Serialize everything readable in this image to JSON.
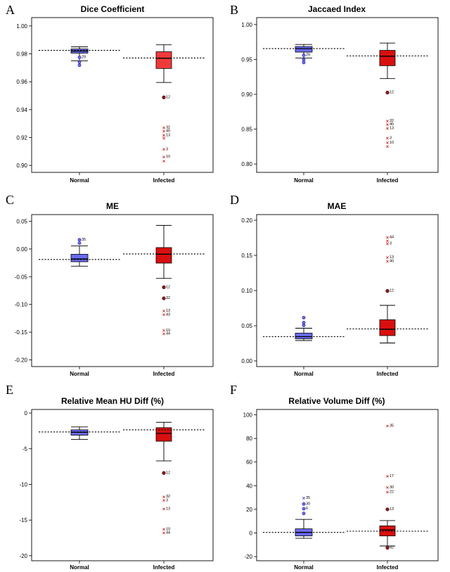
{
  "chart_data": [
    {
      "type": "box",
      "letter": "A",
      "title": "Dice Coefficient",
      "categories": [
        "Normal",
        "Infected"
      ],
      "ylim": [
        0.895,
        1.006
      ],
      "yticks": [
        0.9,
        0.92,
        0.94,
        0.96,
        0.98,
        1.0
      ],
      "decimals": 2,
      "boxes": [
        {
          "color": "#6b6bf2",
          "whisker_low": 0.975,
          "q1": 0.9805,
          "median": 0.982,
          "q3": 0.9835,
          "whisker_high": 0.985,
          "mean": 0.9825,
          "outliers": [
            {
              "v": 0.974,
              "label": "",
              "kind": "circle"
            },
            {
              "v": 0.9718,
              "label": "",
              "kind": "circle"
            },
            {
              "v": 0.9775,
              "label": "29",
              "kind": "circle"
            }
          ]
        },
        {
          "color": "#f03a3a",
          "whisker_low": 0.9595,
          "q1": 0.9695,
          "median": 0.9768,
          "q3": 0.9815,
          "whisker_high": 0.9865,
          "mean": 0.977,
          "outliers": [
            {
              "v": 0.9488,
              "label": "12",
              "kind": "dot"
            },
            {
              "v": 0.927,
              "label": "32",
              "kind": "star"
            },
            {
              "v": 0.9245,
              "label": "40",
              "kind": "star"
            },
            {
              "v": 0.9215,
              "label": "13",
              "kind": "star"
            },
            {
              "v": 0.9195,
              "label": "",
              "kind": "star"
            },
            {
              "v": 0.9115,
              "label": "3",
              "kind": "star"
            },
            {
              "v": 0.906,
              "label": "10",
              "kind": "star"
            },
            {
              "v": 0.903,
              "label": "",
              "kind": "star"
            }
          ]
        }
      ]
    },
    {
      "type": "box",
      "letter": "B",
      "title": "Jaccaed Index",
      "categories": [
        "Normal",
        "Infected"
      ],
      "ylim": [
        0.788,
        1.01
      ],
      "yticks": [
        0.8,
        0.85,
        0.9,
        0.95,
        1.0
      ],
      "decimals": 2,
      "boxes": [
        {
          "color": "#6b6bf2",
          "whisker_low": 0.952,
          "q1": 0.9605,
          "median": 0.9655,
          "q3": 0.9685,
          "whisker_high": 0.9715,
          "mean": 0.9655,
          "outliers": [
            {
              "v": 0.9495,
              "label": "",
              "kind": "circle"
            },
            {
              "v": 0.9455,
              "label": "",
              "kind": "circle"
            },
            {
              "v": 0.956,
              "label": "29",
              "kind": "circle"
            }
          ]
        },
        {
          "color": "#d90f0f",
          "whisker_low": 0.9225,
          "q1": 0.941,
          "median": 0.9545,
          "q3": 0.963,
          "whisker_high": 0.9735,
          "mean": 0.955,
          "outliers": [
            {
              "v": 0.9025,
              "label": "12",
              "kind": "dot"
            },
            {
              "v": 0.8615,
              "label": "32",
              "kind": "star"
            },
            {
              "v": 0.8565,
              "label": "40",
              "kind": "star"
            },
            {
              "v": 0.851,
              "label": "13",
              "kind": "star"
            },
            {
              "v": 0.837,
              "label": "3",
              "kind": "star"
            },
            {
              "v": 0.8305,
              "label": "10",
              "kind": "star"
            },
            {
              "v": 0.825,
              "label": "",
              "kind": "star"
            }
          ]
        }
      ]
    },
    {
      "type": "box",
      "letter": "C",
      "title": "ME",
      "categories": [
        "Normal",
        "Infected"
      ],
      "ylim": [
        -0.212,
        0.062
      ],
      "yticks": [
        0.05,
        0.0,
        -0.05,
        -0.1,
        -0.15,
        -0.2
      ],
      "decimals": 2,
      "boxes": [
        {
          "color": "#6b6bf2",
          "whisker_low": -0.031,
          "q1": -0.023,
          "median": -0.018,
          "q3": -0.0095,
          "whisker_high": 0.0055,
          "mean": -0.019,
          "outliers": [
            {
              "v": 0.0165,
              "label": "35",
              "kind": "circle"
            },
            {
              "v": 0.0105,
              "label": "",
              "kind": "circle"
            }
          ]
        },
        {
          "color": "#d90f0f",
          "whisker_low": -0.053,
          "q1": -0.0255,
          "median": -0.0095,
          "q3": 0.0025,
          "whisker_high": 0.0425,
          "mean": -0.009,
          "outliers": [
            {
              "v": -0.069,
              "label": "12",
              "kind": "dot"
            },
            {
              "v": -0.089,
              "label": "32",
              "kind": "dot"
            },
            {
              "v": -0.112,
              "label": "13",
              "kind": "star"
            },
            {
              "v": -0.1185,
              "label": "43",
              "kind": "star"
            },
            {
              "v": -0.147,
              "label": "10",
              "kind": "star"
            },
            {
              "v": -0.153,
              "label": "44",
              "kind": "star"
            }
          ]
        }
      ]
    },
    {
      "type": "box",
      "letter": "D",
      "title": "MAE",
      "categories": [
        "Normal",
        "Infected"
      ],
      "ylim": [
        -0.008,
        0.208
      ],
      "yticks": [
        0.0,
        0.05,
        0.1,
        0.15,
        0.2
      ],
      "decimals": 2,
      "boxes": [
        {
          "color": "#6b6bf2",
          "whisker_low": 0.029,
          "q1": 0.0315,
          "median": 0.0345,
          "q3": 0.0395,
          "whisker_high": 0.0465,
          "mean": 0.0345,
          "outliers": [
            {
              "v": 0.0615,
              "label": "",
              "kind": "circle"
            },
            {
              "v": 0.0545,
              "label": "",
              "kind": "circle"
            },
            {
              "v": 0.0505,
              "label": "",
              "kind": "circle"
            }
          ]
        },
        {
          "color": "#d90f0f",
          "whisker_low": 0.0255,
          "q1": 0.036,
          "median": 0.045,
          "q3": 0.0585,
          "whisker_high": 0.079,
          "mean": 0.0455,
          "outliers": [
            {
              "v": 0.0995,
              "label": "12",
              "kind": "dot"
            },
            {
              "v": 0.147,
              "label": "13",
              "kind": "star"
            },
            {
              "v": 0.1415,
              "label": "40",
              "kind": "star"
            },
            {
              "v": 0.1665,
              "label": "3",
              "kind": "star"
            },
            {
              "v": 0.1755,
              "label": "44",
              "kind": "star"
            },
            {
              "v": 0.1705,
              "label": "",
              "kind": "star"
            }
          ]
        }
      ]
    },
    {
      "type": "box",
      "letter": "E",
      "title": "Relative Mean HU Diff (%)",
      "categories": [
        "Normal",
        "Infected"
      ],
      "ylim": [
        -20.7,
        0.5
      ],
      "yticks": [
        0,
        -5,
        -10,
        -15,
        -20
      ],
      "decimals": 0,
      "boxes": [
        {
          "color": "#6b6bf2",
          "whisker_low": -3.7,
          "q1": -3.1,
          "median": -2.7,
          "q3": -2.35,
          "whisker_high": -1.95,
          "mean": -2.65,
          "outliers": []
        },
        {
          "color": "#d90f0f",
          "whisker_low": -6.7,
          "q1": -3.95,
          "median": -2.85,
          "q3": -2.05,
          "whisker_high": -1.3,
          "mean": -2.35,
          "outliers": [
            {
              "v": -8.4,
              "label": "12",
              "kind": "dot"
            },
            {
              "v": -11.75,
              "label": "32",
              "kind": "star"
            },
            {
              "v": -12.25,
              "label": "3",
              "kind": "star"
            },
            {
              "v": -13.45,
              "label": "13",
              "kind": "star"
            },
            {
              "v": -16.3,
              "label": "10",
              "kind": "star"
            },
            {
              "v": -16.8,
              "label": "44",
              "kind": "star"
            }
          ]
        }
      ]
    },
    {
      "type": "box",
      "letter": "F",
      "title": "Relative Volume Diff (%)",
      "categories": [
        "Normal",
        "Infected"
      ],
      "ylim": [
        -23.5,
        104.5
      ],
      "yticks": [
        100,
        80,
        60,
        40,
        20,
        0,
        -20
      ],
      "decimals": 0,
      "boxes": [
        {
          "color": "#6b6bf2",
          "whisker_low": -4.5,
          "q1": -2.5,
          "median": 0.5,
          "q3": 3.5,
          "whisker_high": 11.5,
          "mean": 0.5,
          "outliers": [
            {
              "v": 29.5,
              "label": "35",
              "kind": "star"
            },
            {
              "v": 24.5,
              "label": "30",
              "kind": "circle"
            },
            {
              "v": 20.5,
              "label": "6",
              "kind": "circle"
            },
            {
              "v": 16.5,
              "label": "",
              "kind": "circle"
            }
          ]
        },
        {
          "color": "#d90f0f",
          "whisker_low": -11.0,
          "q1": -2.5,
          "median": 2.5,
          "q3": 6.0,
          "whisker_high": 10.5,
          "mean": 1.5,
          "outliers": [
            {
              "v": 90.5,
              "label": "35",
              "kind": "star"
            },
            {
              "v": 48.0,
              "label": "17",
              "kind": "star"
            },
            {
              "v": 38.5,
              "label": "30",
              "kind": "star"
            },
            {
              "v": 34.5,
              "label": "22",
              "kind": "star"
            },
            {
              "v": 20.0,
              "label": "13",
              "kind": "dot"
            },
            {
              "v": -12.5,
              "label": "42",
              "kind": "dot"
            }
          ]
        }
      ]
    }
  ]
}
